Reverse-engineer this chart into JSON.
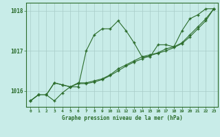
{
  "title": "Graphe pression niveau de la mer (hPa)",
  "background_color": "#c8ece8",
  "grid_color": "#a8ccc8",
  "line_color": "#2a6b2a",
  "marker_color": "#2a6b2a",
  "x_values": [
    0,
    1,
    2,
    3,
    4,
    5,
    6,
    7,
    8,
    9,
    10,
    11,
    12,
    13,
    14,
    15,
    16,
    17,
    18,
    19,
    20,
    21,
    22,
    23
  ],
  "series1": [
    1015.75,
    1015.9,
    1015.9,
    1015.75,
    1015.95,
    1016.1,
    1016.1,
    1017.0,
    1017.4,
    1017.55,
    1017.55,
    1017.75,
    1017.5,
    1017.2,
    1016.85,
    1016.85,
    1017.15,
    1017.15,
    1017.1,
    1017.5,
    1017.8,
    1017.9,
    1018.05,
    1018.05
  ],
  "series2": [
    1015.75,
    1015.9,
    1015.9,
    1016.2,
    1016.15,
    1016.1,
    1016.2,
    1016.2,
    1016.25,
    1016.3,
    1016.4,
    1016.55,
    1016.65,
    1016.75,
    1016.85,
    1016.9,
    1016.95,
    1017.05,
    1017.1,
    1017.2,
    1017.4,
    1017.6,
    1017.8,
    1018.05
  ],
  "series3": [
    1015.75,
    1015.9,
    1015.9,
    1016.2,
    1016.15,
    1016.1,
    1016.18,
    1016.18,
    1016.22,
    1016.28,
    1016.38,
    1016.5,
    1016.62,
    1016.72,
    1016.8,
    1016.88,
    1016.94,
    1017.0,
    1017.08,
    1017.18,
    1017.35,
    1017.55,
    1017.75,
    1018.05
  ],
  "ylim": [
    1015.6,
    1018.2
  ],
  "yticks": [
    1016,
    1017,
    1018
  ],
  "xlim": [
    -0.5,
    23.5
  ],
  "xticks": [
    0,
    1,
    2,
    3,
    4,
    5,
    6,
    7,
    8,
    9,
    10,
    11,
    12,
    13,
    14,
    15,
    16,
    17,
    18,
    19,
    20,
    21,
    22,
    23
  ]
}
